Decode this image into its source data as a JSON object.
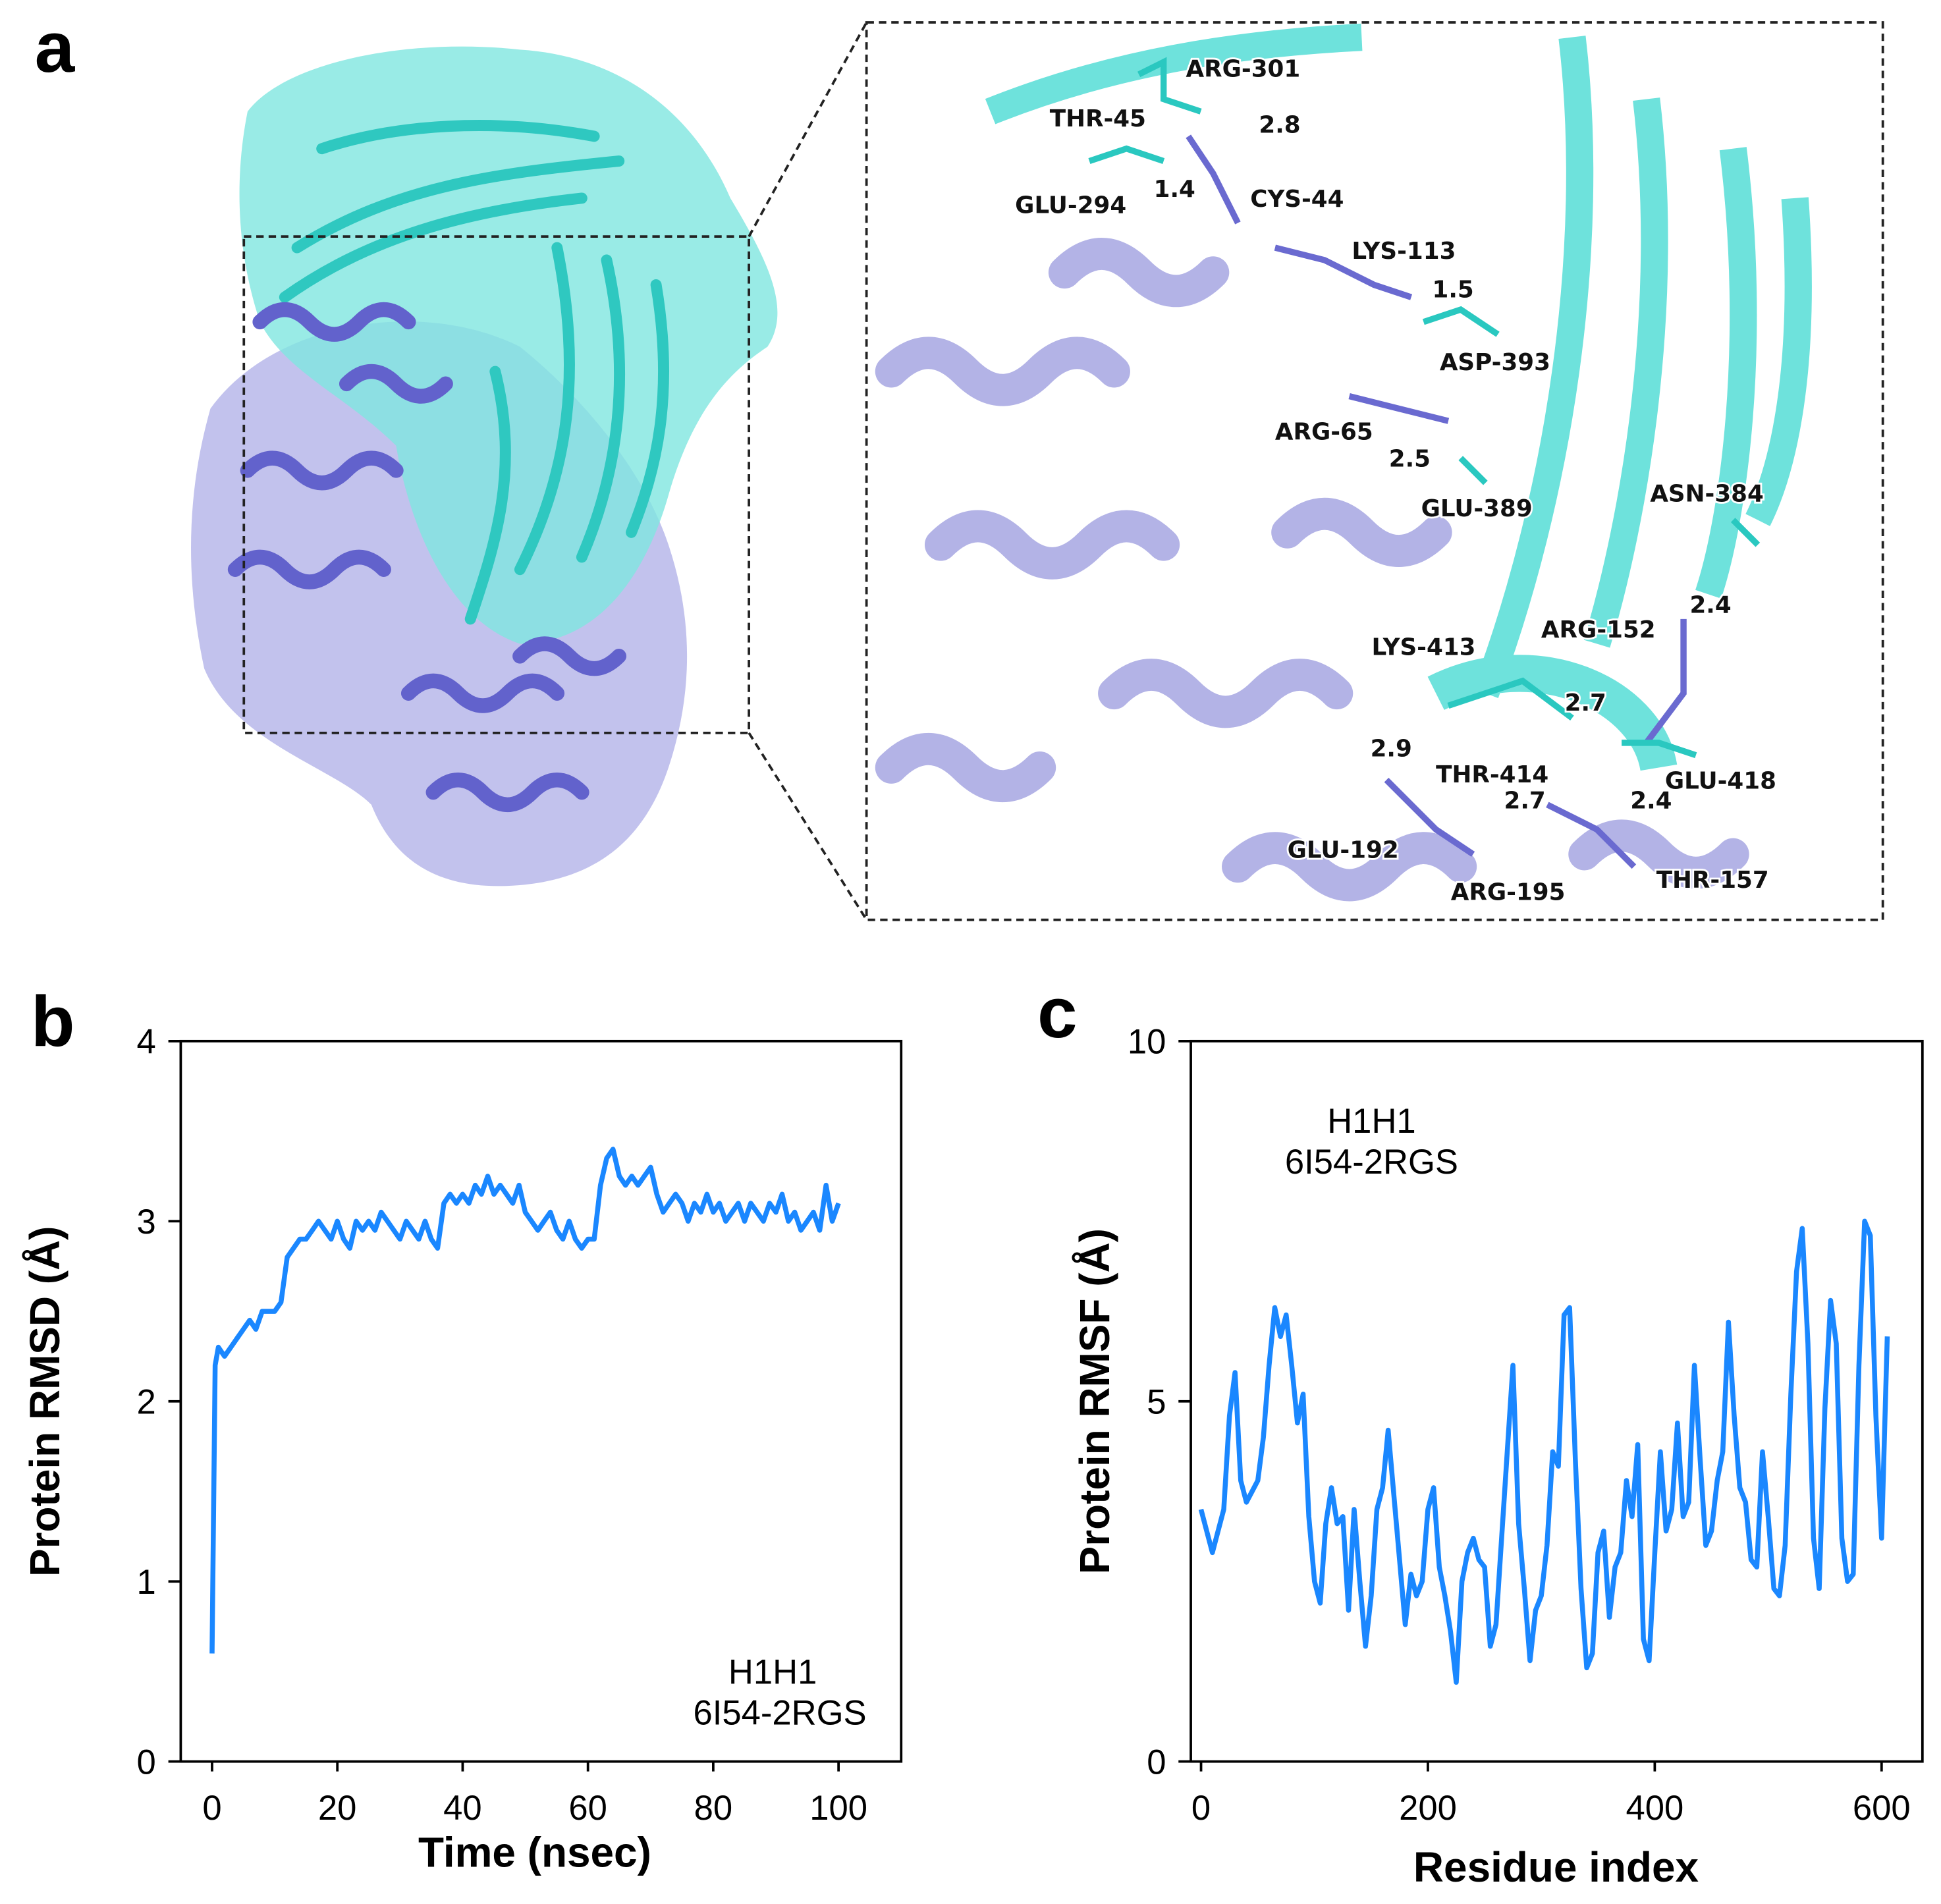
{
  "panel_labels": {
    "a": "a",
    "b": "b",
    "c": "c"
  },
  "colors": {
    "cyan_chain": "#2ad0c8",
    "purple_chain": "#6a6ad0",
    "cyan_surface": "#7fe6e0",
    "purple_surface": "#b7b7ea",
    "line": "#1a87ff"
  },
  "structure": {
    "residues": [
      {
        "id": "arg301",
        "label": "ARG-301"
      },
      {
        "id": "thr45",
        "label": "THR-45"
      },
      {
        "id": "glu294",
        "label": "GLU-294"
      },
      {
        "id": "cys44",
        "label": "CYS-44"
      },
      {
        "id": "lys113",
        "label": "LYS-113"
      },
      {
        "id": "asp393",
        "label": "ASP-393"
      },
      {
        "id": "arg65",
        "label": "ARG-65"
      },
      {
        "id": "glu389",
        "label": "GLU-389"
      },
      {
        "id": "asn384",
        "label": "ASN-384"
      },
      {
        "id": "arg152",
        "label": "ARG-152"
      },
      {
        "id": "lys413",
        "label": "LYS-413"
      },
      {
        "id": "thr414",
        "label": "THR-414"
      },
      {
        "id": "glu418",
        "label": "GLU-418"
      },
      {
        "id": "glu192",
        "label": "GLU-192"
      },
      {
        "id": "arg195",
        "label": "ARG-195"
      },
      {
        "id": "thr157",
        "label": "THR-157"
      }
    ],
    "distances": [
      "2.8",
      "1.4",
      "1.5",
      "2.5",
      "2.4",
      "2.7",
      "2.9",
      "2.7",
      "2.4"
    ]
  },
  "chart_data": [
    {
      "type": "line",
      "title": "",
      "xlabel": "Time (nsec)",
      "ylabel": "Protein RMSD (Å)",
      "xlim": [
        -5,
        110
      ],
      "ylim": [
        0,
        4
      ],
      "xticks": [
        "0",
        "20",
        "40",
        "60",
        "80",
        "100"
      ],
      "yticks": [
        "0",
        "1",
        "2",
        "3",
        "4"
      ],
      "annotation": [
        "H1H1",
        "6I54-2RGS"
      ],
      "legend": "none",
      "grid": false,
      "series": [
        {
          "name": "H1H1 6I54-2RGS",
          "points": [
            [
              0,
              0.6
            ],
            [
              0.5,
              2.2
            ],
            [
              1,
              2.3
            ],
            [
              2,
              2.25
            ],
            [
              3,
              2.3
            ],
            [
              4,
              2.35
            ],
            [
              5,
              2.4
            ],
            [
              6,
              2.45
            ],
            [
              7,
              2.4
            ],
            [
              8,
              2.5
            ],
            [
              9,
              2.5
            ],
            [
              10,
              2.5
            ],
            [
              11,
              2.55
            ],
            [
              12,
              2.8
            ],
            [
              13,
              2.85
            ],
            [
              14,
              2.9
            ],
            [
              15,
              2.9
            ],
            [
              16,
              2.95
            ],
            [
              17,
              3.0
            ],
            [
              18,
              2.95
            ],
            [
              19,
              2.9
            ],
            [
              20,
              3.0
            ],
            [
              21,
              2.9
            ],
            [
              22,
              2.85
            ],
            [
              23,
              3.0
            ],
            [
              24,
              2.95
            ],
            [
              25,
              3.0
            ],
            [
              26,
              2.95
            ],
            [
              27,
              3.05
            ],
            [
              28,
              3.0
            ],
            [
              29,
              2.95
            ],
            [
              30,
              2.9
            ],
            [
              31,
              3.0
            ],
            [
              32,
              2.95
            ],
            [
              33,
              2.9
            ],
            [
              34,
              3.0
            ],
            [
              35,
              2.9
            ],
            [
              36,
              2.85
            ],
            [
              37,
              3.1
            ],
            [
              38,
              3.15
            ],
            [
              39,
              3.1
            ],
            [
              40,
              3.15
            ],
            [
              41,
              3.1
            ],
            [
              42,
              3.2
            ],
            [
              43,
              3.15
            ],
            [
              44,
              3.25
            ],
            [
              45,
              3.15
            ],
            [
              46,
              3.2
            ],
            [
              47,
              3.15
            ],
            [
              48,
              3.1
            ],
            [
              49,
              3.2
            ],
            [
              50,
              3.05
            ],
            [
              51,
              3.0
            ],
            [
              52,
              2.95
            ],
            [
              53,
              3.0
            ],
            [
              54,
              3.05
            ],
            [
              55,
              2.95
            ],
            [
              56,
              2.9
            ],
            [
              57,
              3.0
            ],
            [
              58,
              2.9
            ],
            [
              59,
              2.85
            ],
            [
              60,
              2.9
            ],
            [
              61,
              2.9
            ],
            [
              62,
              3.2
            ],
            [
              63,
              3.35
            ],
            [
              64,
              3.4
            ],
            [
              65,
              3.25
            ],
            [
              66,
              3.2
            ],
            [
              67,
              3.25
            ],
            [
              68,
              3.2
            ],
            [
              69,
              3.25
            ],
            [
              70,
              3.3
            ],
            [
              71,
              3.15
            ],
            [
              72,
              3.05
            ],
            [
              73,
              3.1
            ],
            [
              74,
              3.15
            ],
            [
              75,
              3.1
            ],
            [
              76,
              3.0
            ],
            [
              77,
              3.1
            ],
            [
              78,
              3.05
            ],
            [
              79,
              3.15
            ],
            [
              80,
              3.05
            ],
            [
              81,
              3.1
            ],
            [
              82,
              3.0
            ],
            [
              83,
              3.05
            ],
            [
              84,
              3.1
            ],
            [
              85,
              3.0
            ],
            [
              86,
              3.1
            ],
            [
              87,
              3.05
            ],
            [
              88,
              3.0
            ],
            [
              89,
              3.1
            ],
            [
              90,
              3.05
            ],
            [
              91,
              3.15
            ],
            [
              92,
              3.0
            ],
            [
              93,
              3.05
            ],
            [
              94,
              2.95
            ],
            [
              95,
              3.0
            ],
            [
              96,
              3.05
            ],
            [
              97,
              2.95
            ],
            [
              98,
              3.2
            ],
            [
              99,
              3.0
            ],
            [
              100,
              3.1
            ]
          ]
        }
      ]
    },
    {
      "type": "line",
      "title": "",
      "xlabel": "Residue index",
      "ylabel": "Protein RMSF (Å)",
      "xlim": [
        -9,
        636
      ],
      "ylim": [
        0,
        10
      ],
      "xticks": [
        "0",
        "200",
        "400",
        "600"
      ],
      "yticks": [
        "0",
        "5",
        "10"
      ],
      "annotation": [
        "H1H1",
        "6I54-2RGS"
      ],
      "legend": "none",
      "grid": false,
      "series": [
        {
          "name": "H1H1 6I54-2RGS",
          "points": [
            [
              0,
              3.5
            ],
            [
              10,
              2.9
            ],
            [
              20,
              3.5
            ],
            [
              25,
              4.8
            ],
            [
              30,
              5.4
            ],
            [
              35,
              3.9
            ],
            [
              40,
              3.6
            ],
            [
              50,
              3.9
            ],
            [
              55,
              4.5
            ],
            [
              60,
              5.5
            ],
            [
              65,
              6.3
            ],
            [
              70,
              5.9
            ],
            [
              75,
              6.2
            ],
            [
              80,
              5.5
            ],
            [
              85,
              4.7
            ],
            [
              90,
              5.1
            ],
            [
              95,
              3.4
            ],
            [
              100,
              2.5
            ],
            [
              105,
              2.2
            ],
            [
              110,
              3.3
            ],
            [
              115,
              3.8
            ],
            [
              120,
              3.3
            ],
            [
              125,
              3.4
            ],
            [
              130,
              2.1
            ],
            [
              135,
              3.5
            ],
            [
              140,
              2.5
            ],
            [
              145,
              1.6
            ],
            [
              150,
              2.3
            ],
            [
              155,
              3.5
            ],
            [
              160,
              3.8
            ],
            [
              165,
              4.6
            ],
            [
              170,
              3.7
            ],
            [
              175,
              2.8
            ],
            [
              180,
              1.9
            ],
            [
              185,
              2.6
            ],
            [
              190,
              2.3
            ],
            [
              195,
              2.5
            ],
            [
              200,
              3.5
            ],
            [
              205,
              3.8
            ],
            [
              210,
              2.7
            ],
            [
              215,
              2.3
            ],
            [
              220,
              1.8
            ],
            [
              225,
              1.1
            ],
            [
              230,
              2.5
            ],
            [
              235,
              2.9
            ],
            [
              240,
              3.1
            ],
            [
              245,
              2.8
            ],
            [
              250,
              2.7
            ],
            [
              255,
              1.6
            ],
            [
              260,
              1.9
            ],
            [
              270,
              4.3
            ],
            [
              275,
              5.5
            ],
            [
              280,
              3.3
            ],
            [
              285,
              2.4
            ],
            [
              290,
              1.4
            ],
            [
              295,
              2.1
            ],
            [
              300,
              2.3
            ],
            [
              305,
              3.0
            ],
            [
              310,
              4.3
            ],
            [
              315,
              4.1
            ],
            [
              320,
              6.2
            ],
            [
              325,
              6.3
            ],
            [
              330,
              4.2
            ],
            [
              335,
              2.4
            ],
            [
              340,
              1.3
            ],
            [
              345,
              1.5
            ],
            [
              350,
              2.9
            ],
            [
              355,
              3.2
            ],
            [
              360,
              2.0
            ],
            [
              365,
              2.7
            ],
            [
              370,
              2.9
            ],
            [
              375,
              3.9
            ],
            [
              380,
              3.4
            ],
            [
              385,
              4.4
            ],
            [
              390,
              1.7
            ],
            [
              395,
              1.4
            ],
            [
              400,
              2.9
            ],
            [
              405,
              4.3
            ],
            [
              410,
              3.2
            ],
            [
              415,
              3.5
            ],
            [
              420,
              4.7
            ],
            [
              425,
              3.4
            ],
            [
              430,
              3.6
            ],
            [
              435,
              5.5
            ],
            [
              440,
              4.2
            ],
            [
              445,
              3.0
            ],
            [
              450,
              3.2
            ],
            [
              455,
              3.9
            ],
            [
              460,
              4.3
            ],
            [
              465,
              6.1
            ],
            [
              470,
              4.8
            ],
            [
              475,
              3.8
            ],
            [
              480,
              3.6
            ],
            [
              485,
              2.8
            ],
            [
              490,
              2.7
            ],
            [
              495,
              4.3
            ],
            [
              500,
              3.4
            ],
            [
              505,
              2.4
            ],
            [
              510,
              2.3
            ],
            [
              515,
              3.0
            ],
            [
              520,
              5.1
            ],
            [
              525,
              6.8
            ],
            [
              530,
              7.4
            ],
            [
              535,
              5.8
            ],
            [
              540,
              3.1
            ],
            [
              545,
              2.4
            ],
            [
              550,
              4.9
            ],
            [
              555,
              6.4
            ],
            [
              560,
              5.8
            ],
            [
              565,
              3.1
            ],
            [
              570,
              2.5
            ],
            [
              575,
              2.6
            ],
            [
              580,
              5.5
            ],
            [
              585,
              7.5
            ],
            [
              590,
              7.3
            ],
            [
              595,
              4.8
            ],
            [
              600,
              3.1
            ],
            [
              605,
              5.9
            ]
          ]
        }
      ]
    }
  ]
}
